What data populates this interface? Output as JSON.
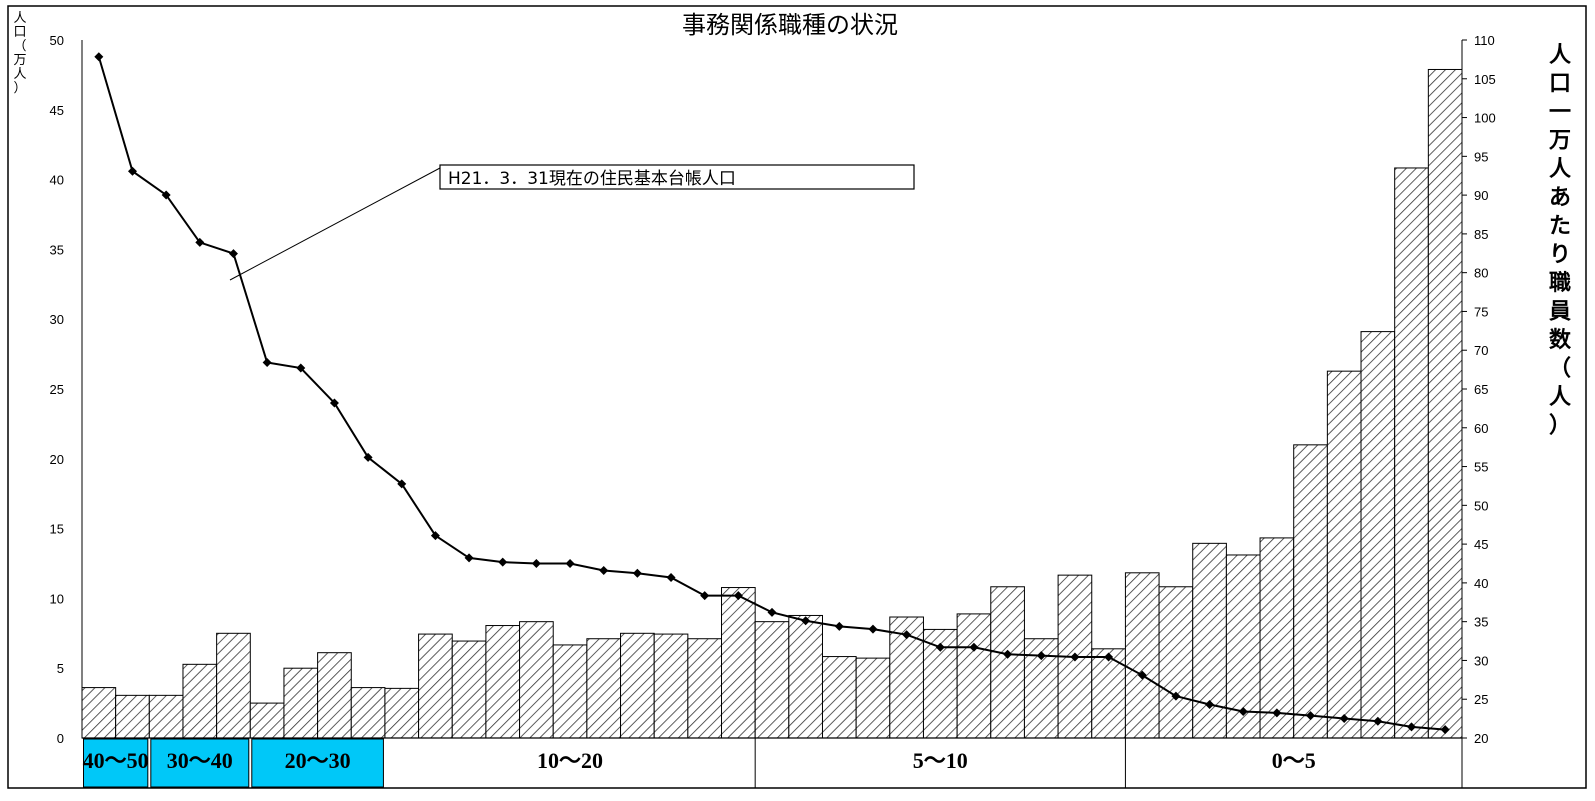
{
  "chart_data": {
    "type": "bar+line",
    "title": "事務関係職種の状況",
    "y_left": {
      "label": "人口（万人）",
      "range": [
        0,
        50
      ],
      "ticks": [
        0,
        5,
        10,
        15,
        20,
        25,
        30,
        35,
        40,
        45,
        50
      ]
    },
    "y_right": {
      "label": "人口一万人あたり職員数（人）",
      "range": [
        20,
        110
      ],
      "ticks": [
        20,
        25,
        30,
        35,
        40,
        45,
        50,
        55,
        60,
        65,
        70,
        75,
        80,
        85,
        90,
        95,
        100,
        105,
        110
      ]
    },
    "bars_axis": "right",
    "line_axis": "left",
    "annotation": "H21．3．31現在の住民基本台帳人口",
    "groups": [
      {
        "label": "40〜50",
        "start": 0,
        "end": 1,
        "highlight": true
      },
      {
        "label": "30〜40",
        "start": 2,
        "end": 4,
        "highlight": true
      },
      {
        "label": "20〜30",
        "start": 5,
        "end": 8,
        "highlight": true
      },
      {
        "label": "10〜20",
        "start": 9,
        "end": 19,
        "highlight": false
      },
      {
        "label": "5〜10",
        "start": 20,
        "end": 30,
        "highlight": false
      },
      {
        "label": "0〜5",
        "start": 31,
        "end": 40,
        "highlight": false
      }
    ],
    "series": [
      {
        "name": "人口一万人あたり職員数",
        "kind": "bar",
        "values": [
          26.5,
          25.5,
          25.5,
          29.5,
          33.5,
          24.5,
          29,
          31,
          26.5,
          26.4,
          33.4,
          32.5,
          34.5,
          35,
          32,
          32.8,
          33.5,
          33.4,
          32.8,
          39.4,
          35,
          35.8,
          30.5,
          30.3,
          35.6,
          34,
          36,
          39.5,
          32.8,
          41,
          31.5,
          41.3,
          39.5,
          45.1,
          43.6,
          45.8,
          57.8,
          67.3,
          72.4,
          93.5,
          106.2
        ]
      },
      {
        "name": "H21．3．31現在の住民基本台帳人口",
        "kind": "line",
        "values": [
          48.8,
          40.6,
          38.9,
          35.5,
          34.7,
          26.9,
          26.5,
          24,
          20.1,
          18.2,
          14.5,
          12.9,
          12.6,
          12.5,
          12.5,
          12,
          11.8,
          11.5,
          10.2,
          10.2,
          9,
          8.4,
          8,
          7.8,
          7.4,
          6.5,
          6.5,
          6,
          5.9,
          5.8,
          5.8,
          4.5,
          3,
          2.4,
          1.9,
          1.8,
          1.6,
          1.4,
          1.2,
          0.8,
          0.6
        ]
      }
    ]
  }
}
